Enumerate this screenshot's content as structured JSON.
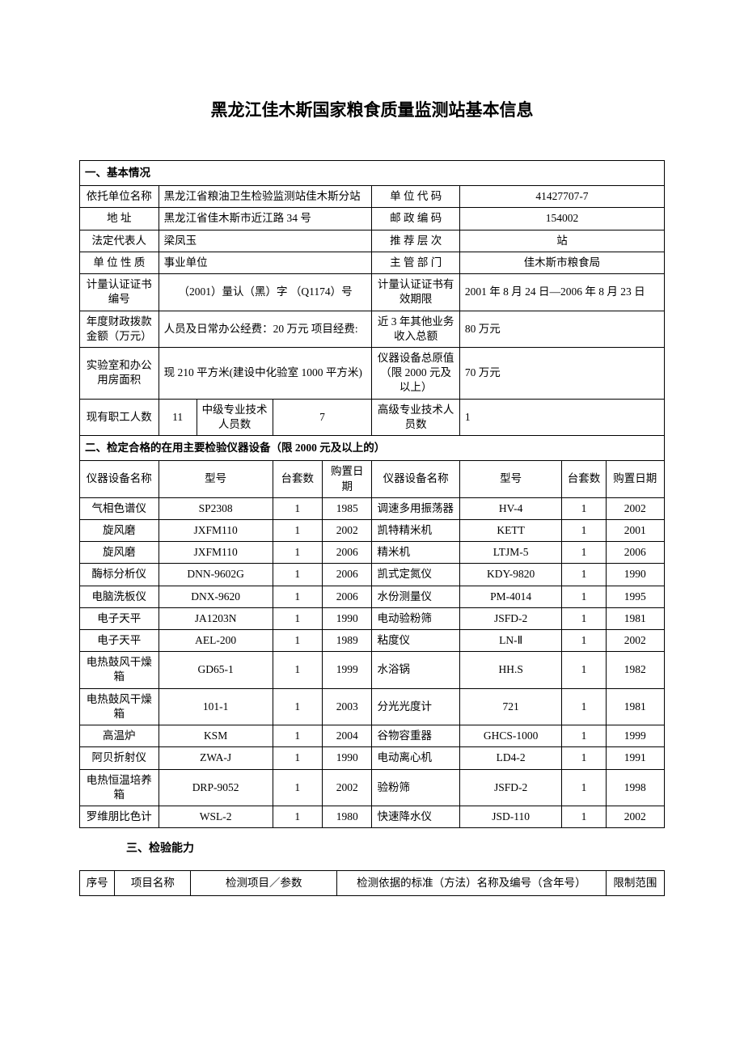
{
  "title": "黑龙江佳木斯国家粮食质量监测站基本信息",
  "section1": {
    "header": "一、基本情况",
    "rows": {
      "org_name_label": "依托单位名称",
      "org_name": "黑龙江省粮油卫生检验监测站佳木斯分站",
      "org_code_label": "单 位 代 码",
      "org_code": "41427707-7",
      "addr_label": "地          址",
      "addr": "黑龙江省佳木斯市近江路 34 号",
      "post_label": "邮 政 编 码",
      "post": "154002",
      "legal_label": "法定代表人",
      "legal": "梁凤玉",
      "rec_level_label": "推 荐 层 次",
      "rec_level": "站",
      "nature_label": "单 位 性 质",
      "nature": "事业单位",
      "supervisor_label": "主 管 部 门",
      "supervisor": "佳木斯市粮食局",
      "cert_no_label": "计量认证证书编号",
      "cert_no": "（2001）量认（黑）字 （Q1174）号",
      "cert_valid_label": "计量认证证书有效期限",
      "cert_valid": "2001 年 8 月 24 日—2006 年 8 月 23 日",
      "funding_label": "年度财政拨款金额（万元）",
      "funding": "人员及日常办公经费：20 万元  项目经费:",
      "other_income_label": "近 3 年其他业务收入总额",
      "other_income": "80 万元",
      "lab_area_label": "实验室和办公用房面积",
      "lab_area": "现 210 平方米(建设中化验室 1000 平方米)",
      "equip_value_label": "仪器设备总原值（限 2000 元及以上）",
      "equip_value": "70 万元",
      "staff_label": "现有职工人数",
      "staff": "11",
      "mid_staff_label": "中级专业技术人员数",
      "mid_staff": "7",
      "senior_staff_label": "高级专业技术人员数",
      "senior_staff": "1"
    }
  },
  "section2": {
    "header": "二、检定合格的在用主要检验仪器设备（限 2000 元及以上的）",
    "columns_left": {
      "name": "仪器设备名称",
      "model": "型号",
      "qty": "台套数",
      "date": "购置日期"
    },
    "columns_right": {
      "name": "仪器设备名称",
      "model": "型号",
      "qty": "台套数",
      "date": "购置日期"
    },
    "rows": [
      {
        "l_name": "气相色谱仪",
        "l_model": "SP2308",
        "l_qty": "1",
        "l_date": "1985",
        "r_name": "调速多用振荡器",
        "r_model": "HV-4",
        "r_qty": "1",
        "r_date": "2002"
      },
      {
        "l_name": "旋风磨",
        "l_model": "JXFM110",
        "l_qty": "1",
        "l_date": "2002",
        "r_name": "凯特精米机",
        "r_model": "KETT",
        "r_qty": "1",
        "r_date": "2001"
      },
      {
        "l_name": "旋风磨",
        "l_model": "JXFM110",
        "l_qty": "1",
        "l_date": "2006",
        "r_name": "精米机",
        "r_model": "LTJM-5",
        "r_qty": "1",
        "r_date": "2006"
      },
      {
        "l_name": "酶标分析仪",
        "l_model": "DNN-9602G",
        "l_qty": "1",
        "l_date": "2006",
        "r_name": "凯式定氮仪",
        "r_model": "KDY-9820",
        "r_qty": "1",
        "r_date": "1990"
      },
      {
        "l_name": "电脑洗板仪",
        "l_model": "DNX-9620",
        "l_qty": "1",
        "l_date": "2006",
        "r_name": "水份测量仪",
        "r_model": "PM-4014",
        "r_qty": "1",
        "r_date": "1995"
      },
      {
        "l_name": "电子天平",
        "l_model": "JA1203N",
        "l_qty": "1",
        "l_date": "1990",
        "r_name": "电动验粉筛",
        "r_model": "JSFD-2",
        "r_qty": "1",
        "r_date": "1981"
      },
      {
        "l_name": "电子天平",
        "l_model": "AEL-200",
        "l_qty": "1",
        "l_date": "1989",
        "r_name": "粘度仪",
        "r_model": "LN-Ⅱ",
        "r_qty": "1",
        "r_date": "2002"
      },
      {
        "l_name": "电热鼓风干燥箱",
        "l_model": "GD65-1",
        "l_qty": "1",
        "l_date": "1999",
        "r_name": "水浴锅",
        "r_model": "HH.S",
        "r_qty": "1",
        "r_date": "1982"
      },
      {
        "l_name": "电热鼓风干燥箱",
        "l_model": "101-1",
        "l_qty": "1",
        "l_date": "2003",
        "r_name": "分光光度计",
        "r_model": "721",
        "r_qty": "1",
        "r_date": "1981"
      },
      {
        "l_name": "高温炉",
        "l_model": "KSM",
        "l_qty": "1",
        "l_date": "2004",
        "r_name": "谷物容重器",
        "r_model": "GHCS-1000",
        "r_qty": "1",
        "r_date": "1999"
      },
      {
        "l_name": "阿贝折射仪",
        "l_model": "ZWA-J",
        "l_qty": "1",
        "l_date": "1990",
        "r_name": "电动离心机",
        "r_model": "LD4-2",
        "r_qty": "1",
        "r_date": "1991"
      },
      {
        "l_name": "电热恒温培养箱",
        "l_model": "DRP-9052",
        "l_qty": "1",
        "l_date": "2002",
        "r_name": "验粉筛",
        "r_model": "JSFD-2",
        "r_qty": "1",
        "r_date": "1998"
      },
      {
        "l_name": "罗维朋比色计",
        "l_model": "WSL-2",
        "l_qty": "1",
        "l_date": "1980",
        "r_name": "快速降水仪",
        "r_model": "JSD-110",
        "r_qty": "1",
        "r_date": "2002"
      }
    ]
  },
  "section3": {
    "header": "三、检验能力",
    "columns": {
      "no": "序号",
      "project": "项目名称",
      "params": "检测项目／参数",
      "basis": "检测依据的标准（方法）名称及编号（含年号）",
      "limit": "限制范围"
    }
  }
}
